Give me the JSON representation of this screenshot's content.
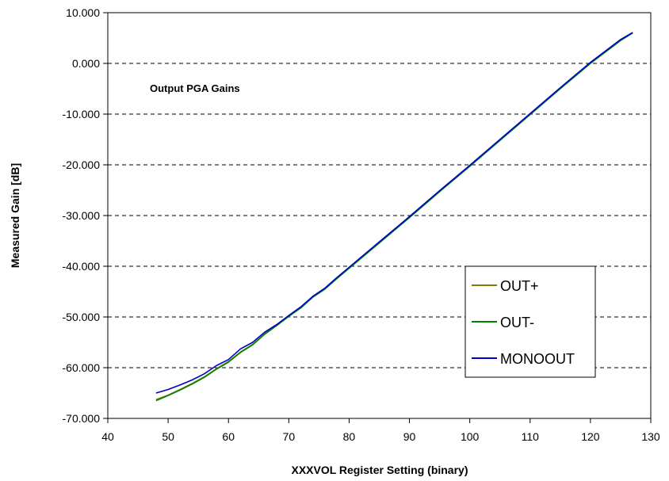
{
  "chart_data": {
    "type": "line",
    "title": "",
    "annotation": "Output PGA Gains",
    "xlabel": "XXXVOL Register Setting (binary)",
    "ylabel": "Measured Gain [dB]",
    "xlim": [
      40,
      130
    ],
    "ylim": [
      -70,
      10
    ],
    "x_ticks": [
      "40",
      "50",
      "60",
      "70",
      "80",
      "90",
      "100",
      "110",
      "120",
      "130"
    ],
    "y_ticks": [
      "10.000",
      "0.000",
      "-10.000",
      "-20.000",
      "-30.000",
      "-40.000",
      "-50.000",
      "-60.000",
      "-70.000"
    ],
    "y_grid": true,
    "x_grid": false,
    "legend_position": "bottom-right",
    "series": [
      {
        "name": "OUT+",
        "color": "#808000",
        "x": [
          48,
          50,
          52,
          54,
          56,
          58,
          60,
          62,
          64,
          66,
          68,
          70,
          72,
          74,
          76,
          78,
          80,
          85,
          90,
          95,
          100,
          105,
          110,
          115,
          120,
          125,
          127
        ],
        "y": [
          -66.3,
          -65.4,
          -64.3,
          -63.1,
          -61.8,
          -60.2,
          -58.8,
          -56.9,
          -55.4,
          -53.3,
          -51.6,
          -49.8,
          -48.1,
          -46.0,
          -44.4,
          -42.3,
          -40.3,
          -35.3,
          -30.3,
          -25.2,
          -20.2,
          -15.1,
          -10.0,
          -4.9,
          0.1,
          4.6,
          6.0
        ]
      },
      {
        "name": "OUT-",
        "color": "#008000",
        "x": [
          48,
          50,
          52,
          54,
          56,
          58,
          60,
          62,
          64,
          66,
          68,
          70,
          72,
          74,
          76,
          78,
          80,
          85,
          90,
          95,
          100,
          105,
          110,
          115,
          120,
          125,
          127
        ],
        "y": [
          -66.5,
          -65.5,
          -64.4,
          -63.2,
          -61.9,
          -60.3,
          -58.9,
          -57.0,
          -55.5,
          -53.4,
          -51.7,
          -49.9,
          -48.2,
          -46.1,
          -44.5,
          -42.4,
          -40.4,
          -35.4,
          -30.4,
          -25.3,
          -20.3,
          -15.2,
          -10.1,
          -5.0,
          0.0,
          4.5,
          6.0
        ]
      },
      {
        "name": "MONOOUT",
        "color": "#0000cc",
        "x": [
          48,
          50,
          52,
          54,
          56,
          58,
          60,
          62,
          64,
          66,
          68,
          70,
          72,
          74,
          76,
          78,
          80,
          85,
          90,
          95,
          100,
          105,
          110,
          115,
          120,
          125,
          127
        ],
        "y": [
          -65.0,
          -64.3,
          -63.4,
          -62.4,
          -61.2,
          -59.6,
          -58.4,
          -56.3,
          -55.0,
          -53.0,
          -51.5,
          -49.7,
          -48.0,
          -45.9,
          -44.3,
          -42.2,
          -40.2,
          -35.2,
          -30.2,
          -25.1,
          -20.1,
          -15.0,
          -9.9,
          -4.8,
          0.2,
          4.7,
          6.1
        ]
      }
    ]
  }
}
